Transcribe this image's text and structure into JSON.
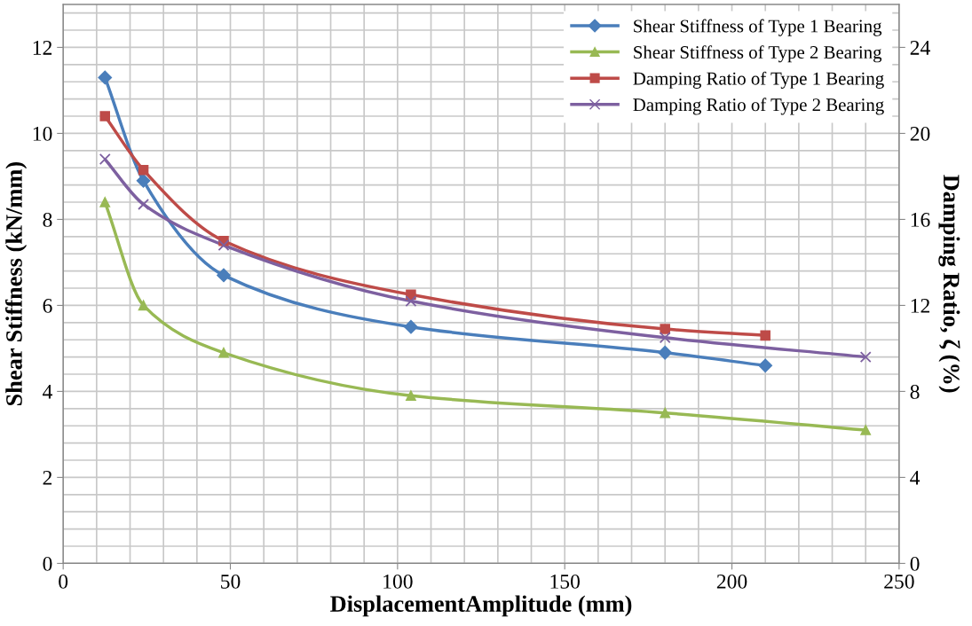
{
  "chart_data": {
    "type": "line",
    "xlabel": "DisplacementAmplitude (mm)",
    "ylabel": "Shear Stiffness (kN/mm)",
    "y2label": "Damping Ratio, ζ (%)",
    "xlim": [
      0,
      250
    ],
    "xticks": [
      0,
      50,
      100,
      150,
      200,
      250
    ],
    "ylim": [
      0,
      13
    ],
    "yticks": [
      0,
      2,
      4,
      6,
      8,
      10,
      12
    ],
    "y2lim": [
      0,
      26
    ],
    "y2ticks": [
      0,
      4,
      8,
      12,
      16,
      20,
      24
    ],
    "grid": true,
    "legend": "top right",
    "line_style": "solid",
    "series": [
      {
        "name": "Shear Stiffness of Type 1 Bearing",
        "color": "#4a7ebb",
        "marker": "diamond",
        "x": [
          12.5,
          24,
          48,
          104,
          180,
          210
        ],
        "values": [
          11.3,
          8.9,
          6.7,
          5.5,
          4.9,
          4.6
        ]
      },
      {
        "name": "Shear Stiffness of Type 2 Bearing",
        "color": "#98b954",
        "marker": "triangle",
        "x": [
          12.5,
          24,
          48,
          104,
          180,
          240
        ],
        "values": [
          8.4,
          6.0,
          4.9,
          3.9,
          3.5,
          3.1
        ]
      },
      {
        "name": "Damping Ratio of Type 1 Bearing",
        "color": "#be4b48",
        "marker": "square",
        "axis": "y2",
        "x": [
          12.5,
          24,
          48,
          104,
          180,
          210
        ],
        "values": [
          20.8,
          18.3,
          15.0,
          12.5,
          10.9,
          10.6
        ]
      },
      {
        "name": "Damping Ratio of Type 2 Bearing",
        "color": "#7d60a0",
        "marker": "cross",
        "axis": "y2",
        "x": [
          12.5,
          24,
          48,
          104,
          180,
          240
        ],
        "values": [
          18.8,
          16.7,
          14.8,
          12.2,
          10.5,
          9.6
        ]
      }
    ]
  }
}
